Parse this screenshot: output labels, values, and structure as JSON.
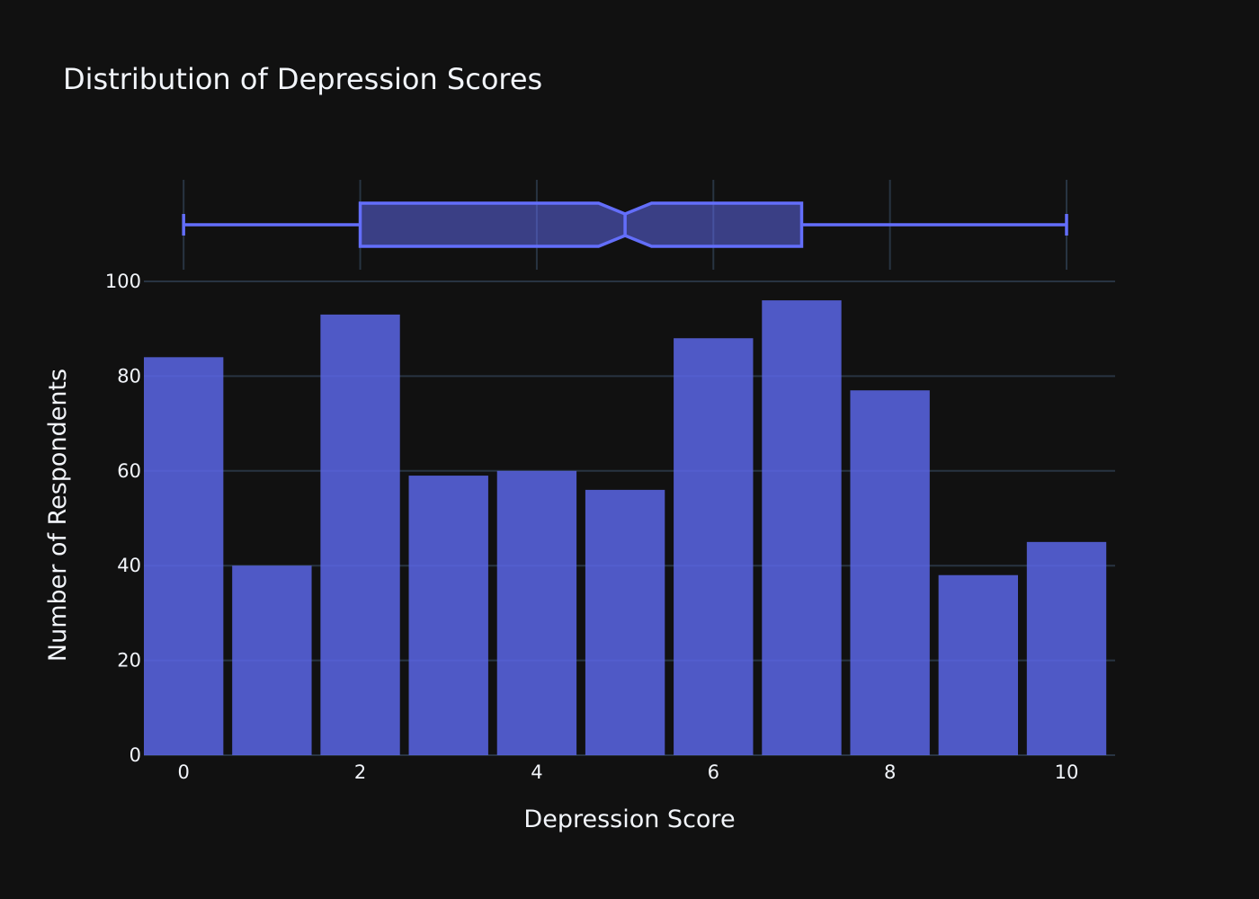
{
  "chart_data": {
    "type": "bar",
    "title": "Distribution of Depression Scores",
    "xlabel": "Depression Score",
    "ylabel": "Number of Respondents",
    "categories": [
      0,
      1,
      2,
      3,
      4,
      5,
      6,
      7,
      8,
      9,
      10
    ],
    "values": [
      84,
      40,
      93,
      59,
      60,
      56,
      88,
      96,
      77,
      38,
      45
    ],
    "xlim": [
      -0.45,
      10.55
    ],
    "ylim": [
      0,
      100
    ],
    "x_ticks": [
      0,
      2,
      4,
      6,
      8,
      10
    ],
    "y_ticks": [
      0,
      20,
      40,
      60,
      80,
      100
    ],
    "grid": true,
    "colors": {
      "bar": "#5b66e6",
      "box": "#636efa",
      "background": "#111111"
    },
    "marginal_box": {
      "type": "box",
      "notched": true,
      "min": 0,
      "q1": 2,
      "median": 5,
      "q3": 7,
      "max": 10,
      "notch_low": 4.7,
      "notch_high": 5.3
    }
  }
}
